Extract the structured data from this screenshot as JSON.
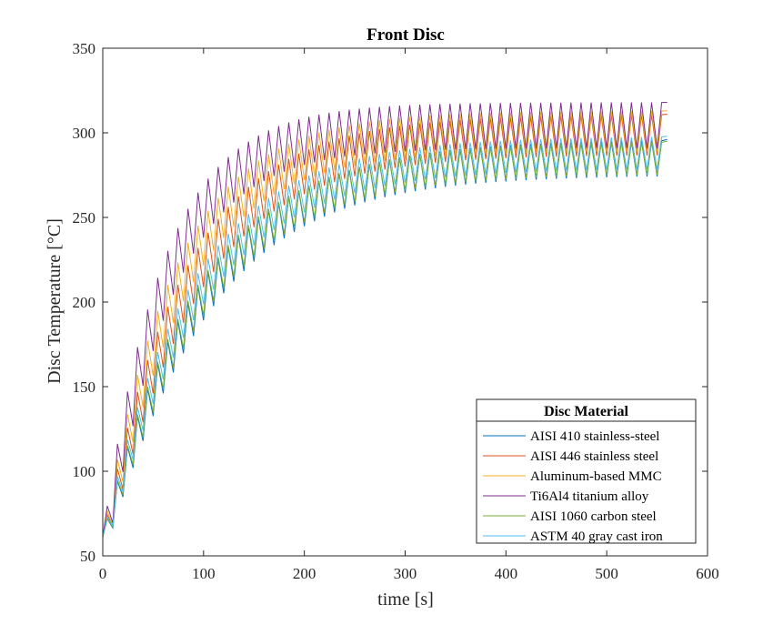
{
  "chart_data": {
    "type": "line",
    "title": "Front Disc",
    "xlabel": "time [s]",
    "ylabel": "Disc Temperature [°C]",
    "xlim": [
      0,
      600
    ],
    "ylim": [
      50,
      350
    ],
    "xticks": [
      0,
      100,
      200,
      300,
      400,
      500,
      600
    ],
    "yticks": [
      50,
      100,
      150,
      200,
      250,
      300,
      350
    ],
    "grid": false,
    "legend": {
      "title": "Disc Material",
      "placement": "lower-right"
    },
    "cycle": {
      "period_s": 10,
      "end_s": 560
    },
    "series": [
      {
        "name": "AISI 410 stainless-steel",
        "color": "#0072BD",
        "start": 61,
        "upper": 296,
        "lower": 275,
        "tau": 95
      },
      {
        "name": "AISI 446 stainless steel",
        "color": "#D95319",
        "start": 61,
        "upper": 311,
        "lower": 287,
        "tau": 82
      },
      {
        "name": " Aluminum-based MMC",
        "color": "#EDB120",
        "start": 61,
        "upper": 313,
        "lower": 289,
        "tau": 72
      },
      {
        "name": "Ti6Al4 titanium alloy",
        "color": "#7E2F8E",
        "start": 61,
        "upper": 318,
        "lower": 291,
        "tau": 60
      },
      {
        "name": "AISI 1060 carbon steel",
        "color": "#77AC30",
        "start": 61,
        "upper": 295,
        "lower": 276,
        "tau": 93
      },
      {
        "name": "ASTM 40 gray cast iron",
        "color": "#4DBEEE",
        "start": 61,
        "upper": 298,
        "lower": 279,
        "tau": 88
      }
    ]
  }
}
